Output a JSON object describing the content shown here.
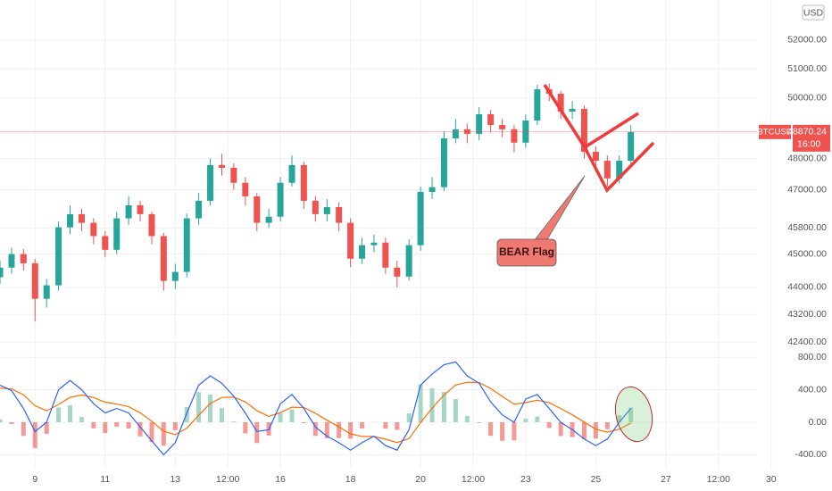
{
  "chart_data": [
    {
      "type": "candlestick",
      "symbol": "BTCUSD",
      "currency": "USD",
      "countdown": "16:00",
      "annotation": "BEAR Flag",
      "log_scale": true,
      "up_color": "#26a69a",
      "down_color": "#ef5350",
      "x": [
        8,
        8.33,
        8.67,
        9,
        9.33,
        9.67,
        10,
        10.33,
        10.67,
        11,
        11.33,
        11.67,
        12,
        12.33,
        12.67,
        13,
        13.33,
        13.67,
        14,
        14.33,
        14.67,
        15,
        15.33,
        15.67,
        16,
        16.33,
        16.67,
        17,
        17.33,
        17.67,
        18,
        18.33,
        18.67,
        19,
        19.33,
        19.67,
        20,
        20.33,
        20.67,
        21,
        21.33,
        21.67,
        22,
        22.33,
        22.67,
        23,
        23.33,
        23.67,
        24,
        24.33,
        24.67,
        25,
        25.33,
        25.67,
        26
      ],
      "open": [
        44300,
        44590,
        45000,
        44720,
        43660,
        44060,
        45820,
        46230,
        45960,
        45550,
        45130,
        46100,
        46510,
        46230,
        45550,
        44190,
        44460,
        46100,
        46650,
        47790,
        47700,
        47220,
        46790,
        45960,
        46150,
        47220,
        47790,
        46650,
        46230,
        46450,
        45960,
        44860,
        45270,
        45350,
        44590,
        44320,
        45270,
        46930,
        47080,
        48660,
        48960,
        48810,
        49460,
        49100,
        48960,
        48520,
        49250,
        50300,
        50150,
        49550,
        49640,
        48220,
        47930,
        47360,
        47930
      ],
      "high": [
        44800,
        45200,
        45150,
        44850,
        44250,
        46000,
        46500,
        46400,
        46100,
        45700,
        46300,
        46800,
        46650,
        46300,
        45650,
        44700,
        46250,
        46900,
        48000,
        48150,
        47850,
        47400,
        46900,
        46400,
        47400,
        48100,
        47900,
        46800,
        46700,
        46600,
        46100,
        45500,
        45600,
        45500,
        44800,
        45450,
        47100,
        47400,
        48900,
        49300,
        49150,
        49700,
        49600,
        49300,
        49100,
        49450,
        50450,
        50500,
        50250,
        49900,
        49750,
        48400,
        48100,
        48100,
        49100
      ],
      "low": [
        44100,
        44400,
        44500,
        43000,
        43400,
        43900,
        45600,
        45700,
        45300,
        44900,
        45000,
        45900,
        46000,
        45300,
        43900,
        43950,
        44300,
        45900,
        46500,
        47450,
        47000,
        46500,
        45700,
        45800,
        46000,
        47100,
        46400,
        46000,
        46000,
        45700,
        44600,
        44700,
        45050,
        44400,
        44000,
        44200,
        45100,
        46700,
        46950,
        48500,
        48500,
        48600,
        48850,
        48700,
        48200,
        48350,
        49100,
        49900,
        49300,
        49300,
        48000,
        47600,
        47100,
        47200,
        47800
      ],
      "close": [
        44590,
        45000,
        44720,
        43660,
        44060,
        45820,
        46230,
        45960,
        45550,
        45130,
        46100,
        46510,
        46230,
        45550,
        44190,
        44460,
        46100,
        46650,
        47790,
        47700,
        47220,
        46790,
        45960,
        46150,
        47220,
        47790,
        46650,
        46230,
        46450,
        45960,
        44860,
        45270,
        45350,
        44590,
        44320,
        45270,
        46930,
        47080,
        48660,
        48960,
        48810,
        49460,
        49100,
        48960,
        48520,
        49250,
        50300,
        50150,
        49550,
        49640,
        48220,
        47930,
        47360,
        47930,
        48870.24
      ],
      "xlim": [
        8,
        29.6
      ],
      "xticks": [
        9,
        11,
        13,
        {
          "value": 14.5,
          "label": "12:00"
        },
        16,
        18,
        20,
        {
          "value": 21.5,
          "label": "12:00"
        },
        23,
        25,
        27,
        {
          "value": 28.5,
          "label": "12:00"
        },
        30
      ],
      "ylim": [
        42100,
        53430
      ],
      "yticks": [
        {
          "value": 52000,
          "label": "52000.00"
        },
        {
          "value": 51000,
          "label": "51000.00"
        },
        {
          "value": 50000,
          "label": "50000.00"
        },
        {
          "value": 48000,
          "label": "48000.00"
        },
        {
          "value": 47000,
          "label": "47000.00"
        },
        {
          "value": 45800,
          "label": "45800.00"
        },
        {
          "value": 45000,
          "label": "45000.00"
        },
        {
          "value": 44000,
          "label": "44000.00"
        },
        {
          "value": 43200,
          "label": "43200.00"
        },
        {
          "value": 42400,
          "label": "42400.00"
        }
      ]
    },
    {
      "type": "macd",
      "macd_color": "#2962ff",
      "signal_color": "#ff6d00",
      "hist_up_color": "#a5d6c8",
      "hist_down_color": "#ef5350",
      "macd": [
        457,
        389,
        171,
        -114,
        0,
        400,
        514,
        400,
        229,
        114,
        171,
        114,
        -57,
        -229,
        -400,
        -251,
        114,
        457,
        571,
        480,
        320,
        114,
        -114,
        -91,
        229,
        343,
        171,
        -57,
        -171,
        -251,
        -343,
        -251,
        -171,
        -286,
        -343,
        -91,
        457,
        594,
        709,
        743,
        571,
        480,
        251,
        91,
        0,
        286,
        343,
        171,
        0,
        -91,
        -206,
        -286,
        -206,
        0,
        171
      ],
      "signal": [
        420,
        411,
        339,
        203,
        142,
        219,
        307,
        335,
        304,
        247,
        224,
        191,
        117,
        13,
        -111,
        -153,
        -73,
        86,
        231,
        306,
        310,
        251,
        142,
        72,
        119,
        186,
        181,
        110,
        26,
        -57,
        -143,
        -175,
        -174,
        -208,
        -249,
        -201,
        -4,
        175,
        336,
        458,
        492,
        488,
        417,
        319,
        223,
        242,
        272,
        241,
        169,
        91,
        2,
        -85,
        -122,
        -85,
        -9
      ],
      "histogram": [
        37,
        -22,
        -168,
        -317,
        -142,
        181,
        207,
        65,
        -75,
        -133,
        -53,
        -77,
        -174,
        -242,
        -289,
        -98,
        187,
        371,
        340,
        174,
        10,
        -137,
        -256,
        -163,
        110,
        157,
        -10,
        -167,
        -197,
        -194,
        -200,
        -76,
        3,
        -78,
        -94,
        110,
        461,
        419,
        373,
        285,
        79,
        -8,
        -166,
        -228,
        -223,
        44,
        71,
        -70,
        -169,
        -182,
        -208,
        -201,
        -84,
        85,
        180
      ],
      "ylim": [
        -571,
        857
      ],
      "yticks": [
        {
          "value": 800,
          "label": "800.00"
        },
        {
          "value": 400,
          "label": "400.00"
        },
        {
          "value": 0,
          "label": "0.00"
        },
        {
          "value": -400,
          "label": "-400.00"
        }
      ]
    }
  ]
}
